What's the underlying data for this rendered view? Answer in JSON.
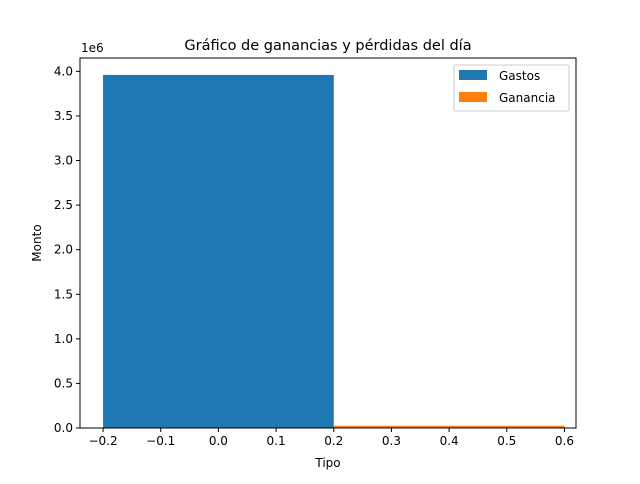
{
  "chart_data": {
    "type": "bar",
    "title": "Gráfico de ganancias y pérdidas del día",
    "xlabel": "Tipo",
    "ylabel": "Monto",
    "y_offset_text": "1e6",
    "xlim": [
      -0.24,
      0.62
    ],
    "ylim": [
      0,
      4.15
    ],
    "x_ticks": [
      -0.2,
      -0.1,
      0.0,
      0.1,
      0.2,
      0.3,
      0.4,
      0.5,
      0.6
    ],
    "x_tick_labels": [
      "−0.2",
      "−0.1",
      "0.0",
      "0.1",
      "0.2",
      "0.3",
      "0.4",
      "0.5",
      "0.6"
    ],
    "y_ticks": [
      0,
      0.5,
      1.0,
      1.5,
      2.0,
      2.5,
      3.0,
      3.5,
      4.0
    ],
    "y_tick_labels": [
      "0.0",
      "0.5",
      "1.0",
      "1.5",
      "2.0",
      "2.5",
      "3.0",
      "3.5",
      "4.0"
    ],
    "grid": false,
    "legend_position": "top-right",
    "series": [
      {
        "name": "Gastos",
        "color": "#1f77b4",
        "x": 0.0,
        "width": 0.4,
        "value": 3.96
      },
      {
        "name": "Ganancia",
        "color": "#ff7f0e",
        "x": 0.4,
        "width": 0.4,
        "value": 0.025
      }
    ]
  }
}
